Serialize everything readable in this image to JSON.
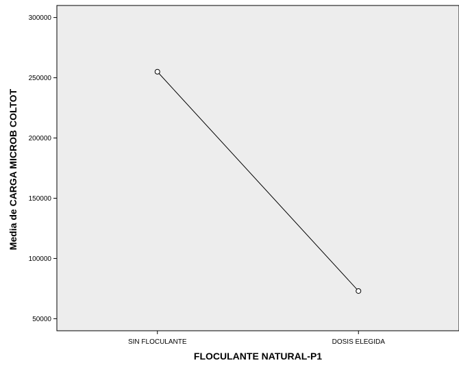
{
  "chart_data": {
    "type": "line",
    "categories": [
      "SIN FLOCULANTE",
      "DOSIS ELEGIDA"
    ],
    "series": [
      {
        "values": [
          255000,
          73000
        ]
      }
    ],
    "xlabel": "FLOCULANTE NATURAL-P1",
    "ylabel": "Media de CARGA MICROB COLTOT",
    "ylim": [
      40000,
      310000
    ],
    "yticks": [
      50000,
      100000,
      150000,
      200000,
      250000,
      300000
    ],
    "grid": false,
    "colors": {
      "plot_background": "#ededed",
      "line": "#000000",
      "marker_fill": "#ffffff"
    }
  }
}
